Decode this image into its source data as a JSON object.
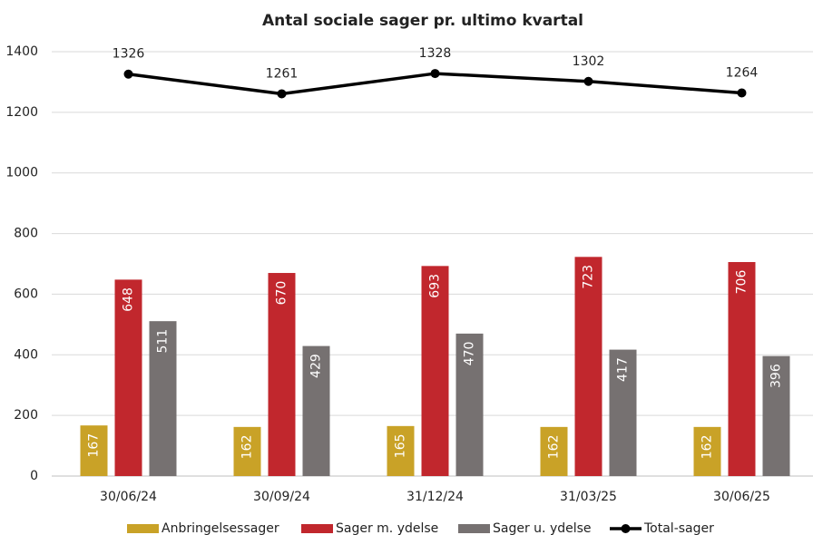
{
  "chart_data": {
    "type": "bar",
    "title": "Antal sociale sager pr. ultimo kvartal",
    "categories": [
      "30/06/24",
      "30/09/24",
      "31/12/24",
      "31/03/25",
      "30/06/25"
    ],
    "series": [
      {
        "name": "Anbringelsessager",
        "color": "#c9a227",
        "values": [
          167,
          162,
          165,
          162,
          162
        ]
      },
      {
        "name": "Sager m. ydelse",
        "color": "#c1272d",
        "values": [
          648,
          670,
          693,
          723,
          706
        ]
      },
      {
        "name": "Sager u. ydelse",
        "color": "#767171",
        "values": [
          511,
          429,
          470,
          417,
          396
        ]
      },
      {
        "name": "Total-sager",
        "color": "#000000",
        "type": "line",
        "values": [
          1326,
          1261,
          1328,
          1302,
          1264
        ]
      }
    ],
    "ylim": [
      0,
      1400
    ],
    "yticks": [
      0,
      200,
      400,
      600,
      800,
      1000,
      1200,
      1400
    ],
    "grid": true,
    "legend": "bottom"
  }
}
